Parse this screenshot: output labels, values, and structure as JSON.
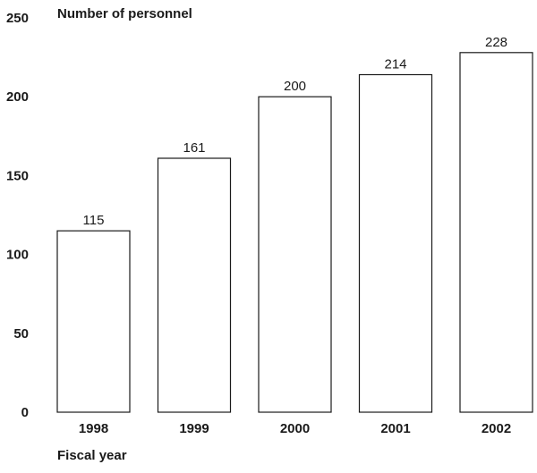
{
  "chart_data": {
    "type": "bar",
    "title": "",
    "ylabel": "Number of personnel",
    "xlabel": "Fiscal year",
    "categories": [
      "1998",
      "1999",
      "2000",
      "2001",
      "2002"
    ],
    "values": [
      115,
      161,
      200,
      214,
      228
    ],
    "data_labels": [
      "115",
      "161",
      "200",
      "214",
      "228"
    ],
    "ylim": [
      0,
      250
    ],
    "yticks": [
      "0",
      "50",
      "100",
      "150",
      "200",
      "250"
    ],
    "grid": false,
    "legend": "none",
    "colors": {
      "bar_fill": "#ffffff",
      "bar_stroke": "#1a1a1a",
      "text": "#1a1a1a"
    }
  }
}
